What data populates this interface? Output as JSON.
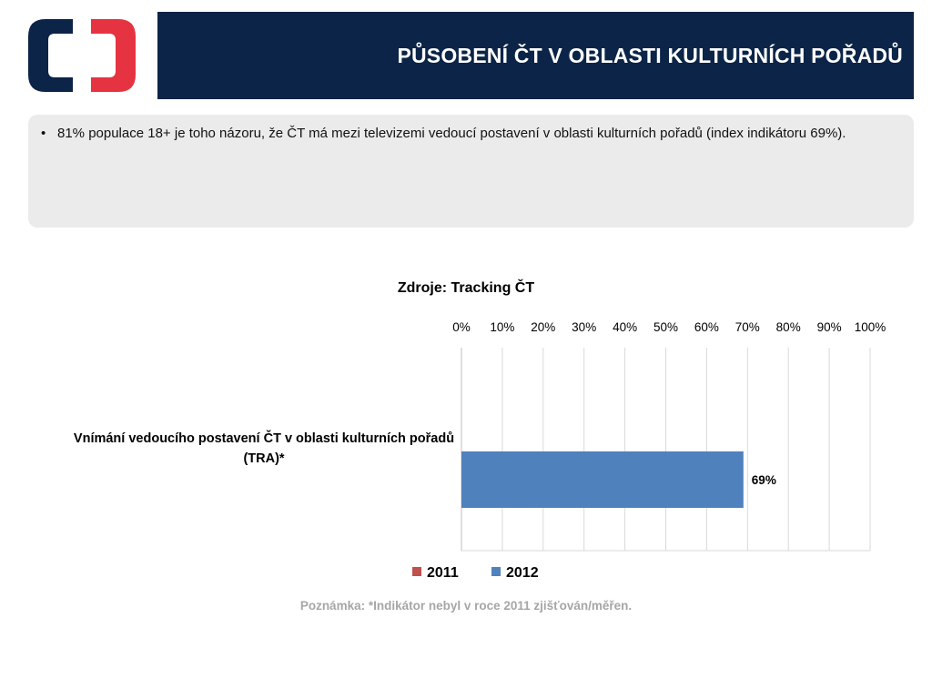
{
  "header": {
    "title": "PŮSOBENÍ ČT V OBLASTI KULTURNÍCH POŘADŮ",
    "logo": "ct-logo"
  },
  "bullet": {
    "symbol": "•",
    "text": "81% populace 18+ je toho názoru, že ČT má mezi televizemi vedoucí postavení v oblasti kulturních pořadů (index indikátoru 69%)."
  },
  "colors": {
    "header_bg": "#0b2447",
    "series_2011": "#c0504d",
    "series_2012": "#4f81bd"
  },
  "chart_data": {
    "type": "bar",
    "orientation": "horizontal",
    "title": "Zdroje: Tracking ČT",
    "categories": [
      "Vnímání vedoucího postavení ČT v oblasti kulturních pořadů (TRA)*"
    ],
    "series": [
      {
        "name": "2011",
        "values": [
          null
        ],
        "color": "#c0504d"
      },
      {
        "name": "2012",
        "values": [
          69
        ],
        "color": "#4f81bd",
        "data_labels": [
          "69%"
        ]
      }
    ],
    "xlim": [
      0,
      100
    ],
    "x_ticks": [
      "0%",
      "10%",
      "20%",
      "30%",
      "40%",
      "50%",
      "60%",
      "70%",
      "80%",
      "90%",
      "100%"
    ],
    "x_axis_position": "top",
    "grid": true,
    "legend": "bottom"
  },
  "note": "Poznámka: *Indikátor nebyl v roce 2011 zjišťován/měřen."
}
